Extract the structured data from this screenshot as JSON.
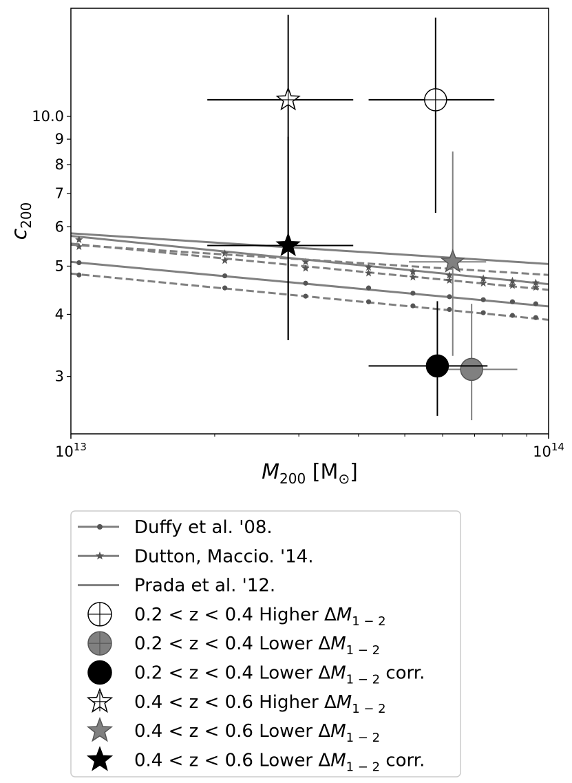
{
  "chart_data": {
    "type": "scatter",
    "title": "",
    "xlabel": "M200 [M⊙]",
    "ylabel": "c200",
    "xscale": "log",
    "yscale": "log",
    "xlim": [
      10000000000000.0,
      100000000000000.0
    ],
    "ylim": [
      2.3,
      16.5
    ],
    "grid": false,
    "legend_position": "below plot",
    "xticks": [
      {
        "value": 10000000000000.0,
        "base": "10",
        "exp": "13"
      },
      {
        "value": 100000000000000.0,
        "base": "10",
        "exp": "14"
      }
    ],
    "yticks": [
      {
        "value": 3,
        "label": "3"
      },
      {
        "value": 4,
        "label": "4"
      },
      {
        "value": 5,
        "label": "5"
      },
      {
        "value": 6,
        "label": "6"
      },
      {
        "value": 7,
        "label": "7"
      },
      {
        "value": 8,
        "label": "8"
      },
      {
        "value": 9,
        "label": "9"
      },
      {
        "value": 10,
        "label": "10.0"
      }
    ],
    "lines": [
      {
        "legend_index": 0,
        "marker": "dot",
        "style": "solid",
        "color": "#808080",
        "x": [
          10000000000000.0,
          100000000000000.0
        ],
        "y": [
          5.1,
          4.15
        ],
        "marker_x": [
          10400000000000.0,
          21000000000000.0,
          31000000000000.0,
          42000000000000.0,
          52000000000000.0,
          62000000000000.0,
          73000000000000.0,
          84000000000000.0,
          94000000000000.0
        ],
        "marker_y": [
          5.08,
          4.78,
          4.62,
          4.52,
          4.41,
          4.34,
          4.28,
          4.24,
          4.2
        ]
      },
      {
        "legend_index": 0,
        "marker": "dot",
        "style": "dashed",
        "color": "#808080",
        "x": [
          10000000000000.0,
          100000000000000.0
        ],
        "y": [
          4.83,
          3.9
        ],
        "marker_x": [
          10400000000000.0,
          21000000000000.0,
          31000000000000.0,
          42000000000000.0,
          52000000000000.0,
          62000000000000.0,
          73000000000000.0,
          84000000000000.0,
          94000000000000.0
        ],
        "marker_y": [
          4.8,
          4.52,
          4.35,
          4.24,
          4.16,
          4.09,
          4.03,
          3.98,
          3.94
        ]
      },
      {
        "legend_index": 1,
        "marker": "star",
        "style": "solid",
        "color": "#808080",
        "x": [
          10000000000000.0,
          100000000000000.0
        ],
        "y": [
          5.75,
          4.6
        ],
        "marker_x": [
          10400000000000.0,
          21000000000000.0,
          31000000000000.0,
          42000000000000.0,
          52000000000000.0,
          62000000000000.0,
          73000000000000.0,
          84000000000000.0,
          94000000000000.0
        ],
        "marker_y": [
          5.65,
          5.3,
          5.1,
          4.97,
          4.87,
          4.79,
          4.72,
          4.67,
          4.63
        ]
      },
      {
        "legend_index": 1,
        "marker": "star",
        "style": "dashed",
        "color": "#808080",
        "x": [
          10000000000000.0,
          100000000000000.0
        ],
        "y": [
          5.55,
          4.48
        ],
        "marker_x": [
          10400000000000.0,
          21000000000000.0,
          31000000000000.0,
          42000000000000.0,
          52000000000000.0,
          62000000000000.0,
          73000000000000.0,
          84000000000000.0,
          94000000000000.0
        ],
        "marker_y": [
          5.47,
          5.13,
          4.95,
          4.84,
          4.75,
          4.68,
          4.62,
          4.57,
          4.53
        ]
      },
      {
        "legend_index": 2,
        "marker": "none",
        "style": "solid",
        "color": "#808080",
        "x": [
          10000000000000.0,
          100000000000000.0
        ],
        "y": [
          5.82,
          5.05
        ]
      },
      {
        "legend_index": 2,
        "marker": "none",
        "style": "dashed",
        "color": "#808080",
        "x": [
          10000000000000.0,
          100000000000000.0
        ],
        "y": [
          5.52,
          4.8
        ]
      }
    ],
    "points": [
      {
        "legend_index": 3,
        "marker": "circle",
        "fill": "#ffffff",
        "stroke": "#000000",
        "errcolor": "#000000",
        "x": 58000000000000.0,
        "y": 10.8,
        "xerr": [
          42000000000000.0,
          77000000000000.0
        ],
        "yerr": [
          6.4,
          15.8
        ]
      },
      {
        "legend_index": 4,
        "marker": "circle",
        "fill": "#808080",
        "stroke": "#555555",
        "errcolor": "#808080",
        "x": 69000000000000.0,
        "y": 3.1,
        "xerr": [
          57000000000000.0,
          86000000000000.0
        ],
        "yerr": [
          2.45,
          4.2
        ]
      },
      {
        "legend_index": 5,
        "marker": "circle",
        "fill": "#000000",
        "stroke": "#000000",
        "errcolor": "#000000",
        "x": 58500000000000.0,
        "y": 3.15,
        "xerr": [
          42000000000000.0,
          74500000000000.0
        ],
        "yerr": [
          2.5,
          4.25
        ]
      },
      {
        "legend_index": 6,
        "marker": "star-open",
        "fill": "#ffffff",
        "stroke": "#000000",
        "errcolor": "#000000",
        "x": 28500000000000.0,
        "y": 10.8,
        "xerr": [
          19300000000000.0,
          39000000000000.0
        ],
        "yerr": [
          3.55,
          16.0
        ]
      },
      {
        "legend_index": 7,
        "marker": "star",
        "fill": "#808080",
        "stroke": "#555555",
        "errcolor": "#808080",
        "x": 63000000000000.0,
        "y": 5.1,
        "xerr": [
          51000000000000.0,
          74000000000000.0
        ],
        "yerr": [
          3.3,
          8.5
        ]
      },
      {
        "legend_index": 8,
        "marker": "star",
        "fill": "#000000",
        "stroke": "#000000",
        "errcolor": "#000000",
        "x": 28500000000000.0,
        "y": 5.5,
        "xerr": [
          19300000000000.0,
          39000000000000.0
        ],
        "yerr": [
          3.55,
          9.1
        ]
      }
    ],
    "legend": [
      {
        "kind": "line-dot",
        "label": "Duffy et al. '08."
      },
      {
        "kind": "line-star",
        "label": "Dutton, Maccio. '14."
      },
      {
        "kind": "line",
        "label": "Prada et al. '12."
      },
      {
        "kind": "circle-open",
        "prefix": "0.2 < z < 0.4 Higher ",
        "symbol": "ΔM",
        "sub": "1 − 2",
        "suffix": ""
      },
      {
        "kind": "circle-gray",
        "prefix": "0.2 < z < 0.4 Lower ",
        "symbol": "ΔM",
        "sub": "1 − 2",
        "suffix": ""
      },
      {
        "kind": "circle-black",
        "prefix": "0.2 < z < 0.4 Lower ",
        "symbol": "ΔM",
        "sub": "1 − 2",
        "suffix": " corr."
      },
      {
        "kind": "star-open",
        "prefix": "0.4 < z < 0.6 Higher ",
        "symbol": "ΔM",
        "sub": "1 − 2",
        "suffix": ""
      },
      {
        "kind": "star-gray",
        "prefix": "0.4 < z < 0.6 Lower ",
        "symbol": "ΔM",
        "sub": "1 − 2",
        "suffix": ""
      },
      {
        "kind": "star-black",
        "prefix": "0.4 < z < 0.6 Lower ",
        "symbol": "ΔM",
        "sub": "1 − 2",
        "suffix": " corr."
      }
    ],
    "axis_titles": {
      "x_main": "M",
      "x_sub": "200",
      "x_unit_open": " [M",
      "x_unit_sub": "⊙",
      "x_unit_close": "]",
      "y_main": "c",
      "y_sub": "200"
    }
  }
}
